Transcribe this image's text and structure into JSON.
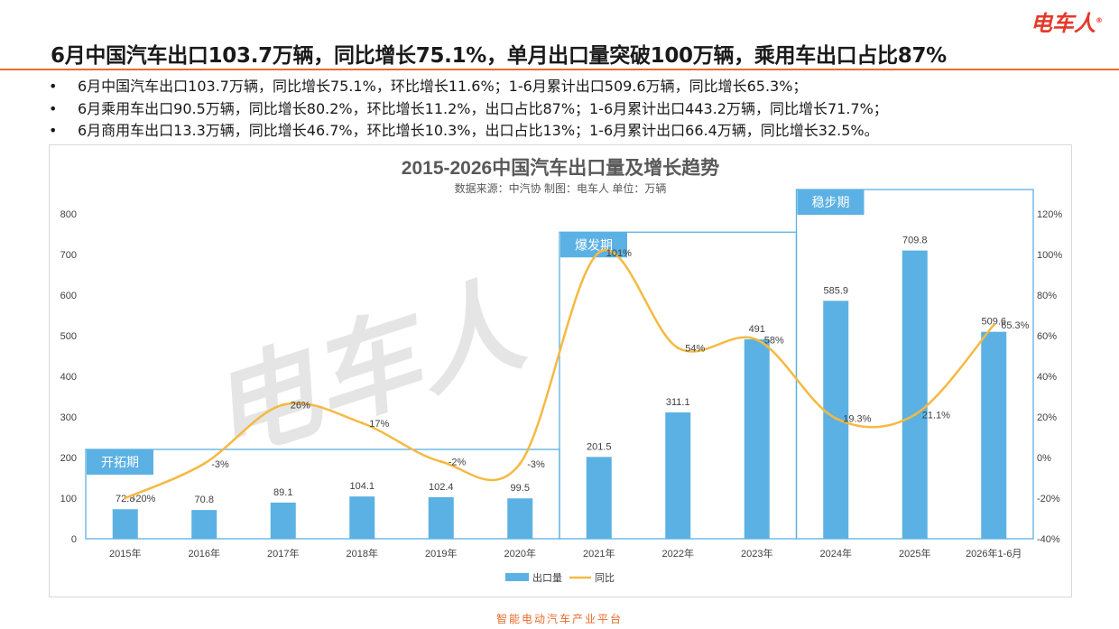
{
  "header": {
    "headline": "6月中国汽车出口103.7万辆，同比增长75.1%，单月出口量突破100万辆，乘用车出口占比87%",
    "brand": "电车人",
    "brand_mark": "®"
  },
  "bullets": [
    "6月中国汽车出口103.7万辆，同比增长75.1%，环比增长11.6%；1-6月累计出口509.6万辆，同比增长65.3%；",
    "6月乘用车出口90.5万辆，同比增长80.2%，环比增长11.2%，出口占比87%；1-6月累计出口443.2万辆，同比增长71.7%；",
    "6月商用车出口13.3万辆，同比增长46.7%，环比增长10.3%，出口占比13%；1-6月累计出口66.4万辆，同比增长32.5%。"
  ],
  "bullet_symbol": "•",
  "footer": "智能电动汽车产业平台",
  "watermark": "电车人",
  "colors": {
    "bar": "#5bb1e3",
    "line": "#f5b942",
    "accent": "#e86c2a",
    "brand": "#e4392a",
    "phase": "#5bb1e3"
  },
  "chart_data": {
    "type": "bar",
    "title": "2015-2026中国汽车出口量及增长趋势",
    "subtitle": "数据来源：中汽协    制图：电车人    单位：万辆",
    "categories": [
      "2015年",
      "2016年",
      "2017年",
      "2018年",
      "2019年",
      "2020年",
      "2021年",
      "2022年",
      "2023年",
      "2024年",
      "2025年",
      "2026年1-6月"
    ],
    "series": [
      {
        "name": "出口量",
        "type": "bar",
        "axis": "left",
        "values": [
          72.8,
          70.8,
          89.1,
          104.1,
          102.4,
          99.5,
          201.5,
          311.1,
          491,
          585.9,
          709.8,
          509.6
        ],
        "labels": [
          "72.8",
          "70.8",
          "89.1",
          "104.1",
          "102.4",
          "99.5",
          "201.5",
          "311.1",
          "491",
          "585.9",
          "709.8",
          "509.6"
        ]
      },
      {
        "name": "同比",
        "type": "line",
        "axis": "right",
        "values": [
          -20,
          -3,
          26,
          17,
          -2,
          -3,
          101,
          54,
          58,
          19.3,
          21.1,
          65.3
        ],
        "labels": [
          "-20%",
          "-3%",
          "26%",
          "17%",
          "-2%",
          "-3%",
          "101%",
          "54%",
          "58%",
          "19.3%",
          "21.1%",
          "65.3%"
        ]
      }
    ],
    "y_left": {
      "min": 0,
      "max": 800,
      "ticks": [
        "0",
        "100",
        "200",
        "300",
        "400",
        "500",
        "600",
        "700",
        "800"
      ]
    },
    "y_right": {
      "min": -40,
      "max": 120,
      "ticks": [
        "-40%",
        "-20%",
        "0%",
        "20%",
        "40%",
        "60%",
        "80%",
        "100%",
        "120%"
      ]
    },
    "phases": [
      {
        "label": "开拓期",
        "start": 0,
        "end": 5,
        "top_value": 220
      },
      {
        "label": "爆发期",
        "start": 6,
        "end": 8,
        "top_value": 755
      },
      {
        "label": "稳步期",
        "start": 9,
        "end": 11,
        "top_value": 860
      }
    ],
    "legend_position": "bottom",
    "grid": false
  }
}
